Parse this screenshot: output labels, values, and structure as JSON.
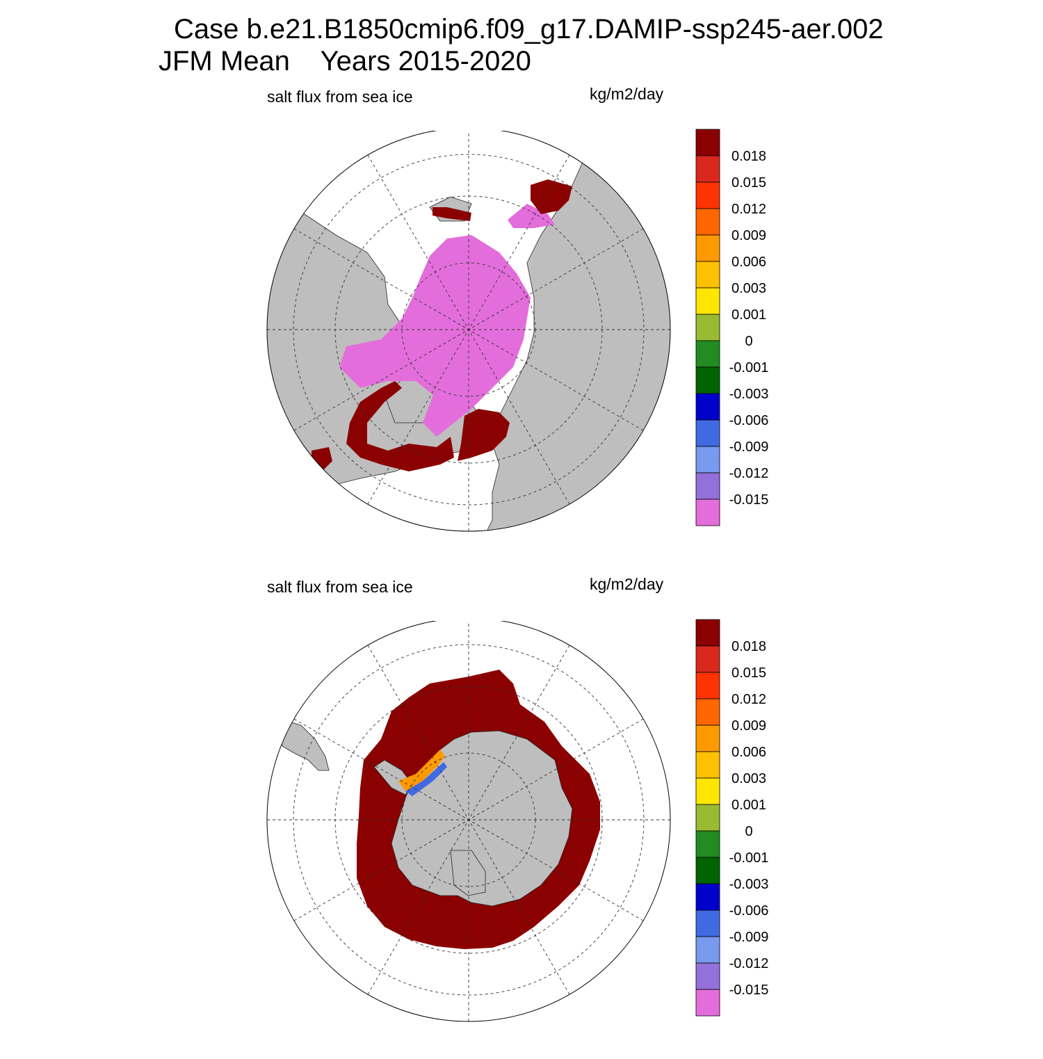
{
  "header": {
    "case_line": "Case b.e21.B1850cmip6.f09_g17.DAMIP-ssp245-aer.002",
    "mean_line": "JFM Mean    Years 2015-2020"
  },
  "panels": [
    {
      "id": "north",
      "hemisphere": "NH",
      "left_label": "salt flux from sea ice",
      "right_label": "kg/m2/day"
    },
    {
      "id": "south",
      "hemisphere": "SH",
      "left_label": "salt flux from sea ice",
      "right_label": "kg/m2/day"
    }
  ],
  "colorbar": {
    "labels": [
      "0.018",
      "0.015",
      "0.012",
      "0.009",
      "0.006",
      "0.003",
      "0.001",
      "0",
      "-0.001",
      "-0.003",
      "-0.006",
      "-0.009",
      "-0.012",
      "-0.015"
    ],
    "colors": [
      "#8b0000",
      "#d9281c",
      "#ff3300",
      "#ff6600",
      "#ff9900",
      "#ffc000",
      "#ffe600",
      "#99bb33",
      "#228b22",
      "#006400",
      "#0000cd",
      "#4169e1",
      "#7799ee",
      "#9370db",
      "#e36edb"
    ]
  },
  "map_colors": {
    "land": "#bebebe",
    "ocean": "#ffffff",
    "max_flux": "#8b0000",
    "min_flux": "#e36edb"
  }
}
